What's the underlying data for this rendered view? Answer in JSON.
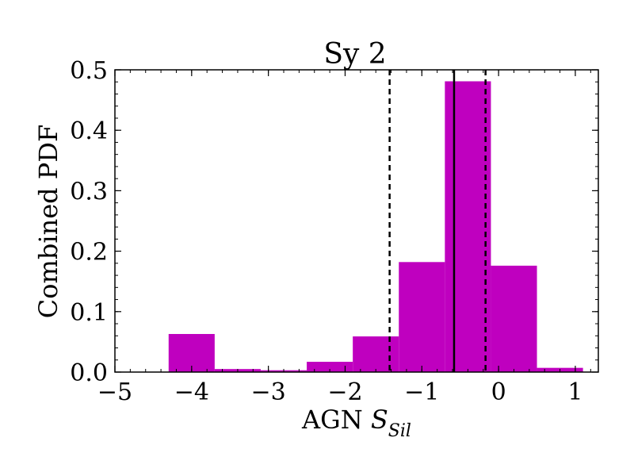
{
  "chart_data": {
    "type": "bar",
    "title": "Sy 2",
    "xlabel_main": "AGN ",
    "xlabel_symbol": "S",
    "xlabel_subscript": "Sil",
    "ylabel": "Combined PDF",
    "xlim": [
      -5,
      1.3
    ],
    "ylim": [
      0,
      0.5
    ],
    "x_ticks": [
      -5,
      -4,
      -3,
      -2,
      -1,
      0,
      1
    ],
    "x_tick_labels": [
      "−5",
      "−4",
      "−3",
      "−2",
      "−1",
      "0",
      "1"
    ],
    "y_ticks": [
      0.0,
      0.1,
      0.2,
      0.3,
      0.4,
      0.5
    ],
    "y_tick_labels": [
      "0.0",
      "0.1",
      "0.2",
      "0.3",
      "0.4",
      "0.5"
    ],
    "bar_color": "#bf00bf",
    "bin_edges": [
      -4.3,
      -3.7,
      -3.1,
      -2.5,
      -1.9,
      -1.3,
      -0.7,
      -0.1,
      0.5,
      1.1
    ],
    "values": [
      0.063,
      0.005,
      0.003,
      0.017,
      0.059,
      0.182,
      0.481,
      0.176,
      0.007
    ],
    "median_line": -0.58,
    "interval_lines": [
      -1.42,
      -0.17
    ]
  }
}
